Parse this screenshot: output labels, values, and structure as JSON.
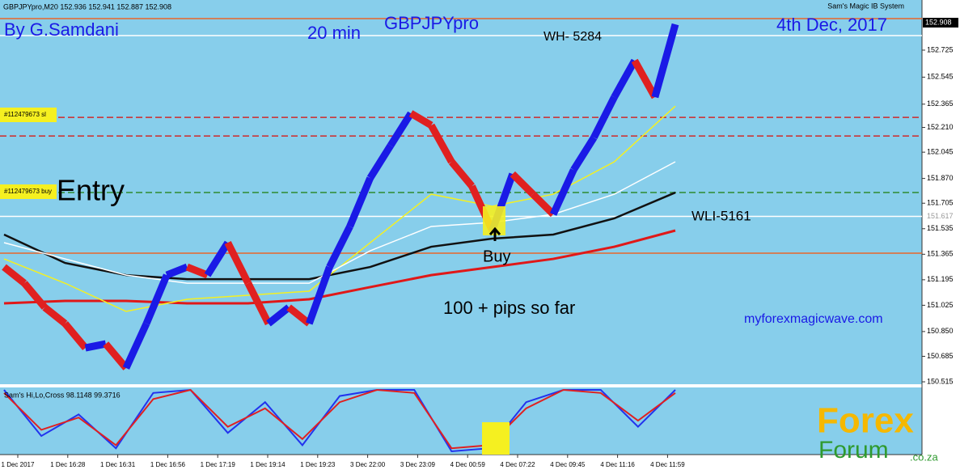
{
  "chart_data": {
    "type": "renko",
    "header": "GBPJPYpro,M20  152.936 152.941 152.887 152.908",
    "indicator_name": "Sam's Magic IB System",
    "author": "By G.Samdani",
    "timeframe": "20 min",
    "symbol": "GBPJPYpro",
    "date": "4th Dec, 2017",
    "annotations": [
      "WH- 5284",
      "Entry",
      "WLI-5161",
      "Buy",
      "100 + pips so far",
      "myforexmagicwave.com"
    ],
    "order_labels": [
      "#112479673 sl",
      "#112479673 buy"
    ],
    "ylim": [
      150.499,
      153.059
    ],
    "yticks": [
      152.725,
      152.545,
      152.365,
      {
        "value": 152.21,
        "label": "152.210"
      },
      152.045,
      {
        "value": 151.87,
        "label": "151.870"
      },
      151.705,
      151.535,
      151.365,
      151.195,
      151.025,
      {
        "value": 150.85,
        "label": "150.850"
      },
      150.685,
      150.515
    ],
    "current_price": 152.908,
    "levels": [
      {
        "value": 152.935,
        "color": "#e8662a",
        "dash": false
      },
      {
        "value": 152.822,
        "color": "#ffffff",
        "dash": false
      },
      {
        "value": 152.277,
        "color": "#d02a2a",
        "dash": true
      },
      {
        "value": 152.153,
        "color": "#d02a2a",
        "dash": true
      },
      {
        "value": 151.776,
        "color": "#2f8a2f",
        "dash": true
      },
      {
        "value": {
          "value": 151.617,
          "label": "151.617"
        },
        "color": "#ffffff",
        "dash": false
      },
      {
        "value": 151.372,
        "color": "#e8662a",
        "dash": false
      }
    ],
    "x_labels": [
      "1 Dec 2017",
      "1 Dec 16:28",
      "1 Dec 16:31",
      "1 Dec 16:56",
      "1 Dec 17:19",
      "1 Dec 19:14",
      "1 Dec 19:23",
      "3 Dec 22:00",
      "3 Dec 23:09",
      "4 Dec 00:59",
      "4 Dec 07:22",
      "4 Dec 09:45",
      "4 Dec 11:16",
      "4 Dec 11:59"
    ],
    "price": {
      "color": "#1a1ae6",
      "down_color": "#e02020",
      "values": [
        151.28,
        151.172,
        151.011,
        150.903,
        150.741,
        150.768,
        150.607,
        150.903,
        151.226,
        151.28,
        151.226,
        151.442,
        151.172,
        150.903,
        151.011,
        150.903,
        151.28,
        151.55,
        151.873,
        152.089,
        152.304,
        152.224,
        151.981,
        151.819,
        151.523,
        151.9,
        151.765,
        151.631,
        151.927,
        152.143,
        152.412,
        152.655,
        152.412,
        152.897
      ]
    },
    "series": [
      {
        "color": "#e01818",
        "width": 3,
        "values": [
          151.038,
          151.054,
          151.054,
          151.038,
          151.038,
          151.065,
          151.146,
          151.226,
          151.28,
          151.334,
          151.415,
          151.523
        ]
      },
      {
        "color": "#111111",
        "width": 2.5,
        "values": [
          151.496,
          151.307,
          151.226,
          151.199,
          151.199,
          151.199,
          151.28,
          151.415,
          151.469,
          151.496,
          151.604,
          151.776
        ]
      },
      {
        "color": "#f5f020",
        "width": 1.5,
        "values": [
          151.334,
          151.172,
          150.984,
          151.065,
          151.092,
          151.119,
          151.442,
          151.765,
          151.685,
          151.765,
          151.981,
          152.352
        ]
      },
      {
        "color": "#ffffff",
        "width": 1.5,
        "values": [
          151.442,
          151.334,
          151.226,
          151.172,
          151.172,
          151.172,
          151.388,
          151.55,
          151.577,
          151.631,
          151.765,
          151.981
        ]
      }
    ],
    "oscillator": {
      "label": "Sam's Hi,Lo,Cross 98.1148 99.3716",
      "ylim": [
        0,
        100
      ],
      "series": [
        {
          "color": "#2233ee",
          "values": [
            100,
            25,
            60,
            5,
            95,
            100,
            30,
            80,
            10,
            90,
            100,
            100,
            0,
            5,
            80,
            100,
            100,
            40,
            100
          ]
        },
        {
          "color": "#e02020",
          "values": [
            95,
            35,
            55,
            10,
            85,
            100,
            40,
            70,
            20,
            80,
            100,
            95,
            5,
            10,
            70,
            100,
            95,
            50,
            95
          ]
        }
      ]
    },
    "watermark": [
      "Forex",
      "Forum",
      ".co.za"
    ]
  }
}
